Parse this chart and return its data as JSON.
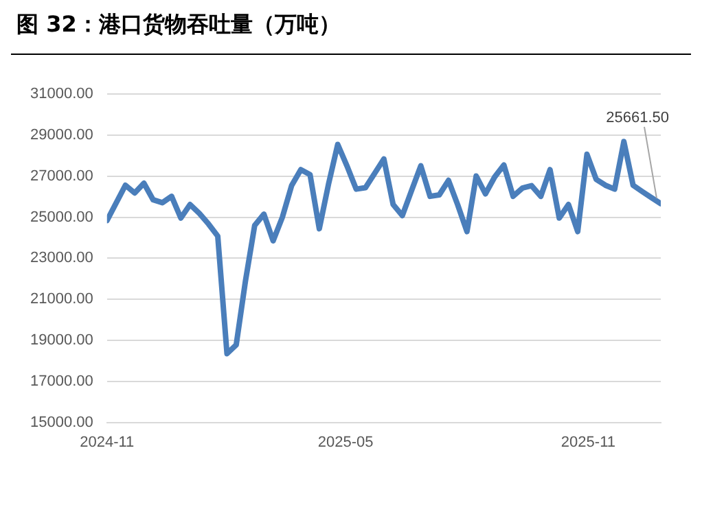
{
  "chart_data": {
    "type": "line",
    "title": "图 32：港口货物吞吐量（万吨）",
    "x": [
      "2024-11-01",
      "2024-11-08",
      "2024-11-15",
      "2024-11-22",
      "2024-11-29",
      "2024-12-06",
      "2024-12-13",
      "2024-12-20",
      "2024-12-27",
      "2025-01-03",
      "2025-01-10",
      "2025-01-17",
      "2025-01-24",
      "2025-01-31",
      "2025-02-07",
      "2025-02-14",
      "2025-02-21",
      "2025-02-28",
      "2025-03-07",
      "2025-03-14",
      "2025-03-21",
      "2025-03-28",
      "2025-04-04",
      "2025-04-11",
      "2025-04-18",
      "2025-04-25",
      "2025-05-02",
      "2025-05-09",
      "2025-05-16",
      "2025-05-23",
      "2025-05-30",
      "2025-06-06",
      "2025-06-13",
      "2025-06-20",
      "2025-06-27",
      "2025-07-04",
      "2025-07-11",
      "2025-07-18",
      "2025-07-25",
      "2025-08-01",
      "2025-08-08",
      "2025-08-15",
      "2025-08-22",
      "2025-08-29",
      "2025-09-05",
      "2025-09-12",
      "2025-09-19",
      "2025-09-26",
      "2025-10-03",
      "2025-10-10",
      "2025-10-17",
      "2025-10-24",
      "2025-10-31",
      "2025-11-07",
      "2025-11-14",
      "2025-11-21",
      "2025-11-28",
      "2025-12-05",
      "2025-12-12",
      "2025-12-19",
      "2025-12-26"
    ],
    "series": [
      {
        "color": "#4a7ebb",
        "values": [
          24840,
          25700,
          26560,
          26180,
          26660,
          25850,
          25710,
          26020,
          24960,
          25620,
          25190,
          24670,
          24080,
          18350,
          18780,
          21890,
          24600,
          25150,
          23850,
          25000,
          26540,
          27320,
          27080,
          24440,
          26610,
          28550,
          27500,
          26370,
          26440,
          27140,
          27840,
          25620,
          25080,
          26300,
          27510,
          26020,
          26090,
          26800,
          25600,
          24300,
          27010,
          26140,
          26960,
          27550,
          26020,
          26420,
          26540,
          26020,
          27320,
          24960,
          25620,
          24300,
          28070,
          26850,
          26560,
          26370,
          28690,
          26560,
          26250,
          25950,
          25661.5
        ]
      }
    ],
    "xlim": [
      "2024-11-01",
      "2025-12-26"
    ],
    "xticks": [
      "2024-11",
      "2025-05",
      "2025-11"
    ],
    "ylim": [
      15000,
      31000
    ],
    "yticks": [
      {
        "value": 15000,
        "label": "15000.00"
      },
      {
        "value": 17000,
        "label": "17000.00"
      },
      {
        "value": 19000,
        "label": "19000.00"
      },
      {
        "value": 21000,
        "label": "21000.00"
      },
      {
        "value": 23000,
        "label": "23000.00"
      },
      {
        "value": 25000,
        "label": "25000.00"
      },
      {
        "value": 27000,
        "label": "27000.00"
      },
      {
        "value": 29000,
        "label": "29000.00"
      },
      {
        "value": 31000,
        "label": "31000.00"
      }
    ],
    "grid": "y",
    "legend": false,
    "marker": "none",
    "line_style": "solid",
    "annotations": [
      {
        "text": "25661.50",
        "x": "2025-12-26",
        "y": 25661.5
      }
    ]
  }
}
